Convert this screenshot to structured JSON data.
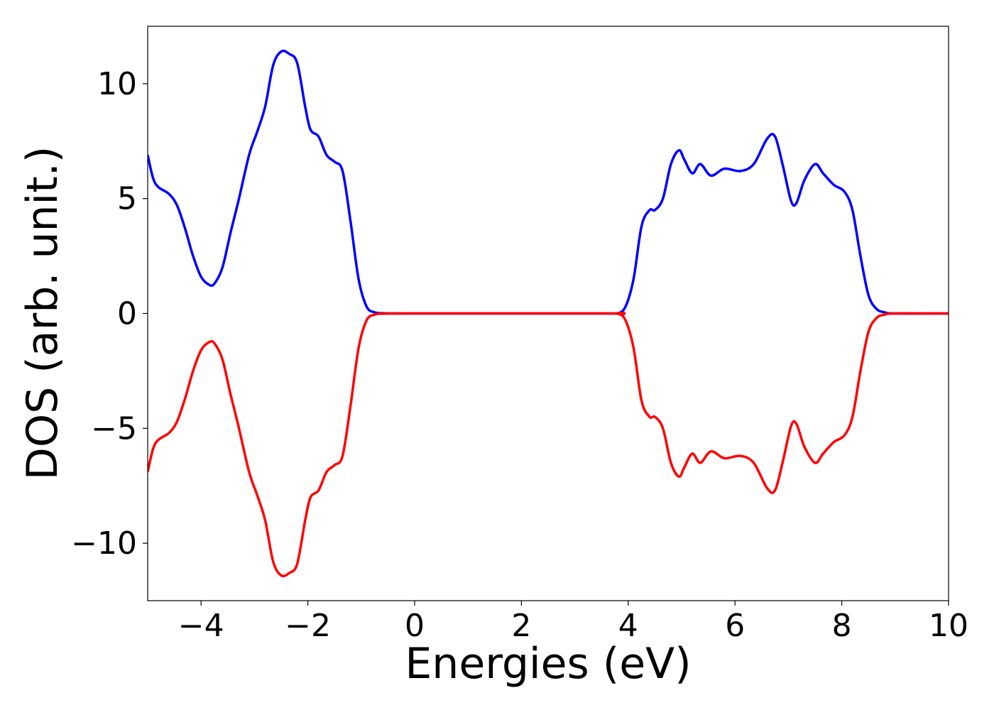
{
  "chart_data": {
    "type": "line",
    "title": "",
    "xlabel": "Energies (eV)",
    "ylabel": "DOS (arb. unit.)",
    "xlim": [
      -5,
      10
    ],
    "ylim": [
      -12.5,
      12.5
    ],
    "grid": false,
    "legend": "none",
    "x_ticks": [
      {
        "value": -4,
        "label": "−4"
      },
      {
        "value": -2,
        "label": "−2"
      },
      {
        "value": 0,
        "label": "0"
      },
      {
        "value": 2,
        "label": "2"
      },
      {
        "value": 4,
        "label": "4"
      },
      {
        "value": 6,
        "label": "6"
      },
      {
        "value": 8,
        "label": "8"
      },
      {
        "value": 10,
        "label": "10"
      }
    ],
    "y_ticks": [
      {
        "value": 10,
        "label": "10"
      },
      {
        "value": 5,
        "label": "5"
      },
      {
        "value": 0,
        "label": "0"
      },
      {
        "value": -5,
        "label": "−5"
      },
      {
        "value": -10,
        "label": "−10"
      }
    ],
    "series": [
      {
        "color": "#0000ff",
        "x": [
          -5.0,
          -4.9,
          -4.8,
          -4.6,
          -4.45,
          -4.3,
          -4.15,
          -4.0,
          -3.85,
          -3.75,
          -3.6,
          -3.45,
          -3.3,
          -3.1,
          -2.95,
          -2.8,
          -2.65,
          -2.5,
          -2.35,
          -2.2,
          -2.05,
          -1.95,
          -1.8,
          -1.65,
          -1.5,
          -1.35,
          -1.2,
          -1.05,
          -0.9,
          -0.75,
          -0.6,
          -0.45,
          0.0,
          3.6,
          3.8,
          3.95,
          4.1,
          4.25,
          4.4,
          4.5,
          4.65,
          4.8,
          4.95,
          5.05,
          5.2,
          5.35,
          5.55,
          5.8,
          6.1,
          6.35,
          6.6,
          6.75,
          6.9,
          7.05,
          7.15,
          7.3,
          7.5,
          7.65,
          7.85,
          8.05,
          8.2,
          8.35,
          8.5,
          8.65,
          8.8,
          9.0,
          10.0
        ],
        "y": [
          6.9,
          5.9,
          5.5,
          5.2,
          4.7,
          3.7,
          2.5,
          1.6,
          1.25,
          1.3,
          2.0,
          3.5,
          4.9,
          6.9,
          7.9,
          9.0,
          10.8,
          11.4,
          11.3,
          10.9,
          9.0,
          8.0,
          7.7,
          6.9,
          6.6,
          6.2,
          4.0,
          1.5,
          0.3,
          0.05,
          0.01,
          0.0,
          0.0,
          0.0,
          0.0,
          0.3,
          1.5,
          3.8,
          4.5,
          4.5,
          5.0,
          6.5,
          7.1,
          6.7,
          6.1,
          6.5,
          6.0,
          6.3,
          6.2,
          6.5,
          7.6,
          7.7,
          6.4,
          4.9,
          4.8,
          5.8,
          6.5,
          6.1,
          5.6,
          5.3,
          4.5,
          2.5,
          0.8,
          0.2,
          0.05,
          0.0,
          0.0
        ]
      },
      {
        "color": "#ff0000",
        "x": [
          -5.0,
          -4.9,
          -4.8,
          -4.6,
          -4.45,
          -4.3,
          -4.15,
          -4.0,
          -3.85,
          -3.75,
          -3.6,
          -3.45,
          -3.3,
          -3.1,
          -2.95,
          -2.8,
          -2.65,
          -2.5,
          -2.35,
          -2.2,
          -2.05,
          -1.95,
          -1.8,
          -1.65,
          -1.5,
          -1.35,
          -1.2,
          -1.05,
          -0.9,
          -0.75,
          -0.6,
          -0.45,
          0.0,
          3.6,
          3.8,
          3.95,
          4.1,
          4.25,
          4.4,
          4.5,
          4.65,
          4.8,
          4.95,
          5.05,
          5.2,
          5.35,
          5.55,
          5.8,
          6.1,
          6.35,
          6.6,
          6.75,
          6.9,
          7.05,
          7.15,
          7.3,
          7.5,
          7.65,
          7.85,
          8.05,
          8.2,
          8.35,
          8.5,
          8.65,
          8.8,
          9.0,
          10.0
        ],
        "y": [
          -6.9,
          -5.9,
          -5.5,
          -5.2,
          -4.7,
          -3.7,
          -2.5,
          -1.6,
          -1.25,
          -1.3,
          -2.0,
          -3.5,
          -4.9,
          -6.9,
          -7.9,
          -9.0,
          -10.8,
          -11.4,
          -11.3,
          -10.9,
          -9.0,
          -8.0,
          -7.7,
          -6.9,
          -6.6,
          -6.2,
          -4.0,
          -1.5,
          -0.3,
          -0.05,
          -0.01,
          0.0,
          0.0,
          0.0,
          0.0,
          -0.3,
          -1.5,
          -3.8,
          -4.5,
          -4.5,
          -5.0,
          -6.5,
          -7.1,
          -6.7,
          -6.1,
          -6.5,
          -6.0,
          -6.3,
          -6.2,
          -6.5,
          -7.6,
          -7.7,
          -6.4,
          -4.9,
          -4.8,
          -5.8,
          -6.5,
          -6.1,
          -5.6,
          -5.3,
          -4.5,
          -2.5,
          -0.8,
          -0.2,
          -0.05,
          0.0,
          0.0
        ]
      }
    ]
  }
}
